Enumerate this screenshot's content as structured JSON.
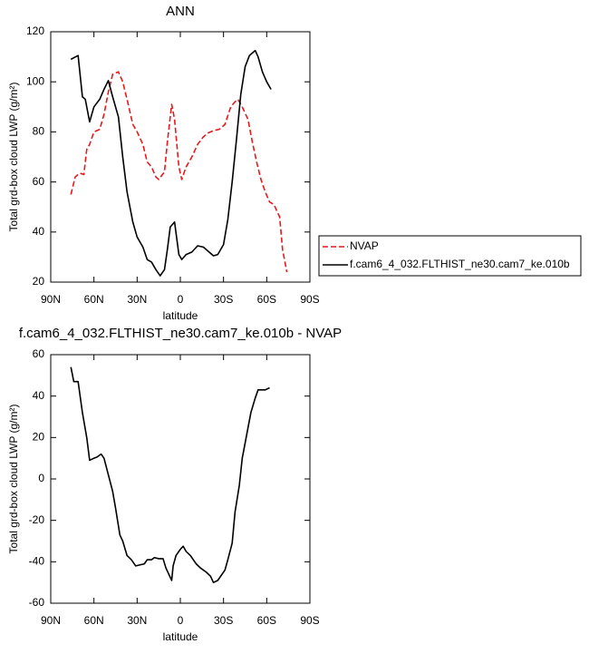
{
  "chart_data": [
    {
      "type": "line",
      "title": "ANN",
      "x_label": "latitude",
      "y_label": "Total grd-box cloud LWP (g/m²)",
      "xlim": [
        90,
        -90
      ],
      "ylim": [
        20,
        120
      ],
      "xticks": [
        {
          "value": 90,
          "label": "90N"
        },
        {
          "value": 60,
          "label": "60N"
        },
        {
          "value": 30,
          "label": "30N"
        },
        0,
        {
          "value": -30,
          "label": "30S"
        },
        {
          "value": -60,
          "label": "60S"
        },
        {
          "value": -90,
          "label": "90S"
        }
      ],
      "yticks": [
        20,
        40,
        60,
        80,
        100,
        120
      ],
      "legend": "right",
      "series": [
        {
          "name": "NVAP",
          "color": "#e41a1c",
          "line_style": "dashed",
          "x": [
            76,
            73,
            70,
            67,
            65,
            63,
            60,
            56,
            53,
            50,
            47,
            43,
            40,
            37,
            33,
            30,
            26,
            23,
            20,
            17,
            15,
            11,
            9,
            6,
            4,
            1,
            -1,
            -4,
            -8,
            -12,
            -16,
            -19,
            -23,
            -27,
            -31,
            -35,
            -38,
            -40,
            -43,
            -47,
            -50,
            -53,
            -56,
            -59,
            -62,
            -65,
            -69,
            -71,
            -74
          ],
          "values": [
            55,
            62,
            63.5,
            63,
            73,
            75,
            80,
            81,
            87,
            96,
            103,
            104,
            100,
            93,
            83,
            80,
            75,
            68,
            66,
            62,
            61,
            64,
            76,
            91,
            85,
            66,
            61,
            66,
            70,
            75,
            78,
            79.5,
            80.5,
            81,
            83,
            90,
            92,
            93,
            90,
            85,
            76,
            68,
            61,
            56,
            52,
            51,
            46,
            33,
            24
          ]
        },
        {
          "name": "f.cam6_4_032.FLTHIST_ne30.cam7_ke.010b",
          "color": "#000000",
          "line_style": "solid",
          "x": [
            76,
            71,
            68,
            66,
            63,
            60,
            56,
            53,
            50,
            47,
            43,
            40,
            37,
            33,
            30,
            26,
            23,
            20,
            17,
            14,
            11,
            9,
            7,
            4,
            1,
            -1,
            -4,
            -8,
            -12,
            -16,
            -19,
            -23,
            -26,
            -30,
            -33,
            -36,
            -39,
            -42,
            -45,
            -48,
            -52,
            -54,
            -57,
            -60,
            -63
          ],
          "values": [
            109,
            110.5,
            94,
            93,
            84,
            90,
            93,
            97,
            100.5,
            94,
            86,
            70,
            56,
            44,
            38,
            34,
            29,
            28,
            25,
            22.5,
            25,
            33,
            42,
            44,
            31,
            29,
            31,
            32,
            34.5,
            34,
            32.5,
            30.5,
            31,
            35,
            45,
            60,
            77,
            95,
            106,
            110.5,
            112.5,
            110,
            104,
            100,
            97
          ]
        }
      ]
    },
    {
      "type": "line",
      "title": "f.cam6_4_032.FLTHIST_ne30.cam7_ke.010b - NVAP",
      "x_label": "latitude",
      "y_label": "Total grd-box cloud LWP (g/m²)",
      "xlim": [
        90,
        -90
      ],
      "ylim": [
        -60,
        60
      ],
      "xticks": [
        {
          "value": 90,
          "label": "90N"
        },
        {
          "value": 60,
          "label": "60N"
        },
        {
          "value": 30,
          "label": "30N"
        },
        0,
        {
          "value": -30,
          "label": "30S"
        },
        {
          "value": -60,
          "label": "60S"
        },
        {
          "value": -90,
          "label": "90S"
        }
      ],
      "yticks": [
        -60,
        -40,
        -20,
        0,
        20,
        40,
        60
      ],
      "color": "#000000",
      "x": [
        76,
        74,
        71,
        68,
        65,
        63,
        60,
        58,
        55,
        53,
        50,
        47,
        45,
        42,
        40,
        37,
        34,
        31,
        28,
        25,
        23,
        20,
        18,
        15,
        12,
        10,
        6,
        5,
        3,
        0,
        -2,
        -4,
        -7,
        -11,
        -14,
        -18,
        -21,
        -23,
        -26,
        -28,
        -31,
        -33,
        -36,
        -38,
        -41,
        -43,
        -46,
        -49,
        -52,
        -54,
        -57,
        -59,
        -62
      ],
      "values": [
        54,
        47,
        47,
        32,
        20,
        9,
        10,
        10.5,
        12,
        10,
        2,
        -6,
        -14,
        -27,
        -30,
        -37,
        -39,
        -42,
        -41.5,
        -41,
        -39,
        -39,
        -38,
        -38.5,
        -38.5,
        -43,
        -49,
        -42,
        -37,
        -34,
        -32.5,
        -35,
        -37,
        -41,
        -43,
        -45,
        -47,
        -50,
        -49,
        -47,
        -44,
        -39,
        -31,
        -16,
        -3,
        10,
        21,
        32,
        39,
        43,
        43,
        43,
        44
      ]
    }
  ]
}
